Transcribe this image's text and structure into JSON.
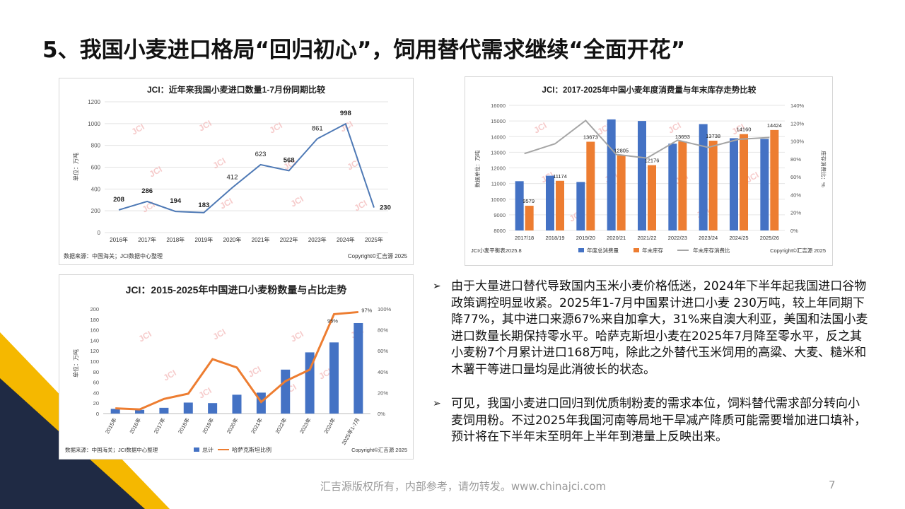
{
  "page": {
    "title": "5、我国小麦进口格局“回归初心”，饲用替代需求继续“全面开花”",
    "footer": "汇吉源版权所有，内部参考，请勿转发。www.chinajci.com",
    "page_number": "7",
    "watermark": "JCI",
    "colors": {
      "accent_yellow": "#f5b800",
      "navy": "#1f2a44",
      "blue": "#4472c4",
      "orange": "#ed7d31",
      "gray": "#a5a5a5"
    }
  },
  "bullets": [
    "由于大量进口替代导致国内玉米小麦价格低迷，2024年下半年起我国进口谷物政策调控明显收紧。2025年1-7月中国累计进口小麦 230万吨，较上年同期下降77%，其中进口来源67%来自加拿大，31%来自澳大利亚，美国和法国小麦进口数量长期保持零水平。哈萨克斯坦小麦在2025年7月降至零水平，反之其小麦粉7个月累计进口168万吨，除此之外替代玉米饲用的高粱、大麦、糙米和木薯干等进口量均是此消彼长的状态。",
    "可见，我国小麦进口回归到优质制粉麦的需求本位，饲料替代需求部分转向小麦饲用粉。不过2025年我国河南等局地干旱减产降质可能需要增加进口填补， 预计将在下半年末至明年上半年到港量上反映出来。"
  ],
  "chart_data": [
    {
      "id": "chart1",
      "type": "line",
      "title": "JCI：近年来我国小麦进口数量1-7月份同期比较",
      "ylabel": "单位：万吨",
      "xlabel": "",
      "source": "数据来源：中国海关；JCI数据中心整理",
      "copyright": "Copyright©汇吉源 2025",
      "categories": [
        "2016年",
        "2017年",
        "2018年",
        "2019年",
        "2020年",
        "2021年",
        "2022年",
        "2023年",
        "2024年",
        "2025年"
      ],
      "values": [
        208,
        286,
        194,
        183,
        412,
        623,
        568,
        861,
        998,
        230
      ],
      "labels": [
        "208",
        "286",
        "194",
        "183",
        "412",
        "623",
        "568",
        "861",
        "998",
        "230"
      ],
      "bold_labels": [
        true,
        true,
        true,
        true,
        false,
        false,
        true,
        false,
        true,
        true
      ],
      "ylim": [
        0,
        1200
      ],
      "yticks": [
        "0",
        "200",
        "400",
        "600",
        "800",
        "1000",
        "1200"
      ],
      "color": "#4e79b5"
    },
    {
      "id": "chart2",
      "type": "bar",
      "title": "JCI：2017-2025年中国小麦年度消费量与年末库存走势比较",
      "ylabel": "数据单位：万吨",
      "y2label": "库存消费比：%",
      "source": "JCI小麦平衡表2025.8",
      "copyright": "Copyright©汇吉源 2025",
      "categories": [
        "2017/18",
        "2018/19",
        "2019/20",
        "2020/21",
        "2021/22",
        "2022/23",
        "2023/24",
        "2024/25",
        "2025/26"
      ],
      "series": [
        {
          "name": "年度总消费量",
          "values": [
            11150,
            11500,
            11100,
            15100,
            15000,
            13550,
            14800,
            13900,
            13850
          ],
          "color": "#4472c4"
        },
        {
          "name": "年末库存",
          "values": [
            9579,
            11174,
            13673,
            12805,
            12176,
            13693,
            13738,
            14160,
            14424
          ],
          "color": "#ed7d31",
          "labels": [
            "9579",
            "11174",
            "13673",
            "12805",
            "12176",
            "13693",
            "13738",
            "14160",
            "14424"
          ]
        },
        {
          "name": "年末库存消费比",
          "values": [
            86,
            97,
            123,
            85,
            81,
            101,
            93,
            102,
            104
          ],
          "color": "#a5a5a5",
          "axis": "right"
        }
      ],
      "ylim": [
        8000,
        16000
      ],
      "yticks": [
        "8000",
        "9000",
        "10000",
        "11000",
        "12000",
        "13000",
        "14000",
        "15000",
        "16000"
      ],
      "y2lim": [
        0,
        140
      ],
      "y2ticks": [
        "0%",
        "20%",
        "40%",
        "60%",
        "80%",
        "100%",
        "120%",
        "140%"
      ]
    },
    {
      "id": "chart3",
      "type": "bar",
      "title": "JCI：2015-2025年中国进口小麦粉数量与占比走势",
      "ylabel": "单位：万吨",
      "source": "数据来源：中国海关；JCI数据中心整理",
      "copyright": "Copyright©汇吉源 2025",
      "categories": [
        "2015年",
        "2016年",
        "2017年",
        "2018年",
        "2019年",
        "2020年",
        "2021年",
        "2022年",
        "2023年",
        "2024年",
        "2025年1-7月"
      ],
      "series": [
        {
          "name": "总计",
          "values": [
            9,
            7,
            11,
            21,
            20,
            36,
            40,
            84,
            117,
            136,
            173
          ],
          "color": "#4472c4"
        },
        {
          "name": "哈萨克斯坦比例",
          "values": [
            5,
            4,
            14,
            19,
            52,
            44,
            11,
            31,
            42,
            95,
            97
          ],
          "color": "#ed7d31",
          "axis": "right",
          "labels": {
            "9": "95%",
            "10": "97%"
          }
        }
      ],
      "ylim": [
        0,
        200
      ],
      "yticks": [
        "0",
        "20",
        "40",
        "60",
        "80",
        "100",
        "120",
        "140",
        "160",
        "180",
        "200"
      ],
      "y2lim": [
        0,
        100
      ],
      "y2ticks": [
        "0%",
        "20%",
        "40%",
        "60%",
        "80%",
        "100%"
      ]
    }
  ]
}
